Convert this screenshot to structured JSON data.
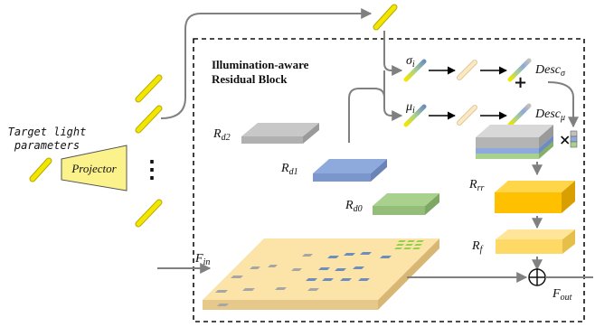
{
  "colors": {
    "light_rod": "#f2e600",
    "projector_fill": "#fbf28c",
    "gray_slab": "#c8c8c8",
    "blue_slab": "#8ea9db",
    "green_slab": "#a9d18e",
    "orange_slab": "#ffc000",
    "light_orange_slab": "#ffd966",
    "feature_map": "#fce4a8",
    "arrow": "#808080"
  },
  "inputs": {
    "target_light_line1": "Target light",
    "target_light_line2": "parameters",
    "projector_label": "Projector",
    "ellipsis": "⋮"
  },
  "block": {
    "title_line1": "Illumination-aware",
    "title_line2": "Residual Block"
  },
  "labels": {
    "sigma_i_base": "σ",
    "sigma_i_sub": "i",
    "mu_i_base": "μ",
    "mu_i_sub": "i",
    "desc_sigma_base": "Desc",
    "desc_sigma_sub": "σ",
    "desc_mu_base": "Desc",
    "desc_mu_sub": "μ",
    "plus": "+",
    "times": "×",
    "rd2_base": "R",
    "rd2_sub": "d2",
    "rd1_base": "R",
    "rd1_sub": "d1",
    "rd0_base": "R",
    "rd0_sub": "d0",
    "rrr_base": "R",
    "rrr_sub": "rr",
    "rf_base": "R",
    "rf_sub": "f",
    "fin_base": "F",
    "fin_sub": "in",
    "fout_base": "F",
    "fout_sub": "out",
    "oplus": "⊕"
  }
}
